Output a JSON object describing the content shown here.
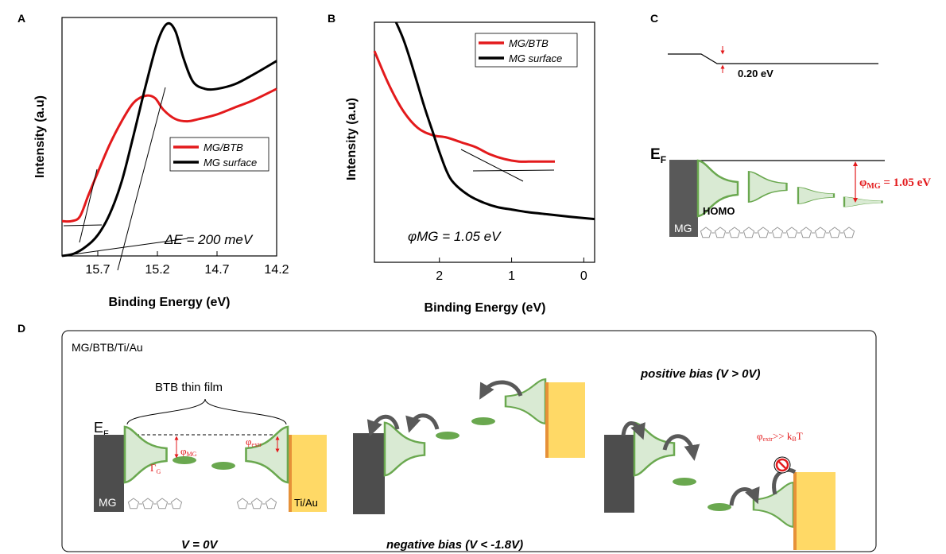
{
  "figure": {
    "panel_labels": {
      "a": "A",
      "b": "B",
      "c": "C",
      "d": "D"
    },
    "colors": {
      "red": "#e31a1c",
      "black": "#000000",
      "green": "#6aa84f",
      "green_fill": "#d9ead3",
      "electrode_dark": "#4d4d4d",
      "gold": "#ffd966",
      "orange_edge": "#e69138"
    }
  },
  "chart_data": [
    {
      "type": "line",
      "panel": "A",
      "xlabel": "Binding Energy (eV)",
      "ylabel": "Intensity (a.u)",
      "xlim": [
        16.0,
        14.2
      ],
      "x_reversed": true,
      "ylim": [
        0,
        1
      ],
      "x_ticks": [
        "15.7",
        "15.2",
        "14.7",
        "14.2"
      ],
      "x_tick_values": [
        15.7,
        15.2,
        14.7,
        14.2
      ],
      "legend": [
        "MG/BTB",
        "MG surface"
      ],
      "legend_placement": "center-right",
      "annotation": "ΔE = 200 meV",
      "series": [
        {
          "name": "MG/BTB",
          "color": "#e31a1c",
          "x": [
            16.0,
            15.92,
            15.85,
            15.78,
            15.7,
            15.6,
            15.5,
            15.4,
            15.3,
            15.22,
            15.15,
            15.05,
            14.95,
            14.85,
            14.7,
            14.55,
            14.4,
            14.2
          ],
          "y": [
            0.15,
            0.15,
            0.17,
            0.26,
            0.36,
            0.48,
            0.58,
            0.66,
            0.69,
            0.68,
            0.63,
            0.59,
            0.58,
            0.59,
            0.61,
            0.64,
            0.67,
            0.72
          ]
        },
        {
          "name": "MG surface",
          "color": "#000000",
          "x": [
            16.0,
            15.9,
            15.8,
            15.7,
            15.6,
            15.5,
            15.4,
            15.3,
            15.2,
            15.12,
            15.05,
            14.98,
            14.9,
            14.8,
            14.7,
            14.55,
            14.4,
            14.2
          ],
          "y": [
            0.0,
            0.01,
            0.04,
            0.09,
            0.18,
            0.32,
            0.52,
            0.73,
            0.92,
            1.0,
            0.97,
            0.85,
            0.75,
            0.72,
            0.72,
            0.74,
            0.78,
            0.84
          ]
        }
      ]
    },
    {
      "type": "line",
      "panel": "B",
      "xlabel": "Binding Energy (eV)",
      "ylabel": "Intensity (a.u)",
      "xlim": [
        2.9,
        -0.15
      ],
      "x_reversed": true,
      "ylim": [
        0,
        1
      ],
      "x_ticks": [
        "2",
        "1",
        "0"
      ],
      "x_tick_values": [
        2,
        1,
        0
      ],
      "legend": [
        "MG/BTB",
        "MG surface"
      ],
      "legend_placement": "top-right",
      "annotation": "φMG = 1.05 eV",
      "series": [
        {
          "name": "MG/BTB",
          "color": "#e31a1c",
          "x": [
            2.9,
            2.7,
            2.5,
            2.3,
            2.1,
            1.9,
            1.7,
            1.5,
            1.3,
            1.1,
            0.9,
            0.7,
            0.5,
            0.4
          ],
          "y": [
            0.88,
            0.74,
            0.63,
            0.56,
            0.53,
            0.52,
            0.5,
            0.48,
            0.45,
            0.43,
            0.42,
            0.42,
            0.42,
            0.42
          ]
        },
        {
          "name": "MG surface",
          "color": "#000000",
          "x": [
            2.6,
            2.5,
            2.4,
            2.3,
            2.2,
            2.1,
            2.0,
            1.9,
            1.8,
            1.6,
            1.4,
            1.2,
            1.0,
            0.8,
            0.5,
            0.2,
            -0.15
          ],
          "y": [
            1.0,
            0.93,
            0.84,
            0.74,
            0.64,
            0.55,
            0.46,
            0.38,
            0.33,
            0.28,
            0.25,
            0.23,
            0.22,
            0.21,
            0.2,
            0.19,
            0.18
          ]
        }
      ]
    }
  ],
  "panel_c": {
    "delta_label": "0.20 eV",
    "ef_main": "E",
    "ef_sub": "F",
    "phi_label": "φ",
    "phi_sub": "MG",
    "phi_value": " = 1.05 eV",
    "homo_label": "HOMO",
    "mg_label": "MG"
  },
  "panel_d": {
    "title": "MG/BTB/Ti/Au",
    "film_label": "BTB thin film",
    "ef_main": "E",
    "ef_sub": "F",
    "phi_mg": "φ",
    "phi_mg_sub": "MG",
    "phi_extr": "φ",
    "phi_extr_sub": "extr",
    "gamma": "Γ",
    "gamma_sub": "G",
    "mg_label": "MG",
    "tiau_label": "Ti/Au",
    "zero_bias": "V = 0V",
    "negative_bias": "negative bias (V < -1.8V)",
    "positive_bias": "positive bias (V > 0V)",
    "barrier_main": "φ",
    "barrier_sub1": "extr",
    "barrier_mid": ">> k",
    "barrier_sub2": "B",
    "barrier_end": "T",
    "prohibited_icon": "prohibited-icon"
  }
}
